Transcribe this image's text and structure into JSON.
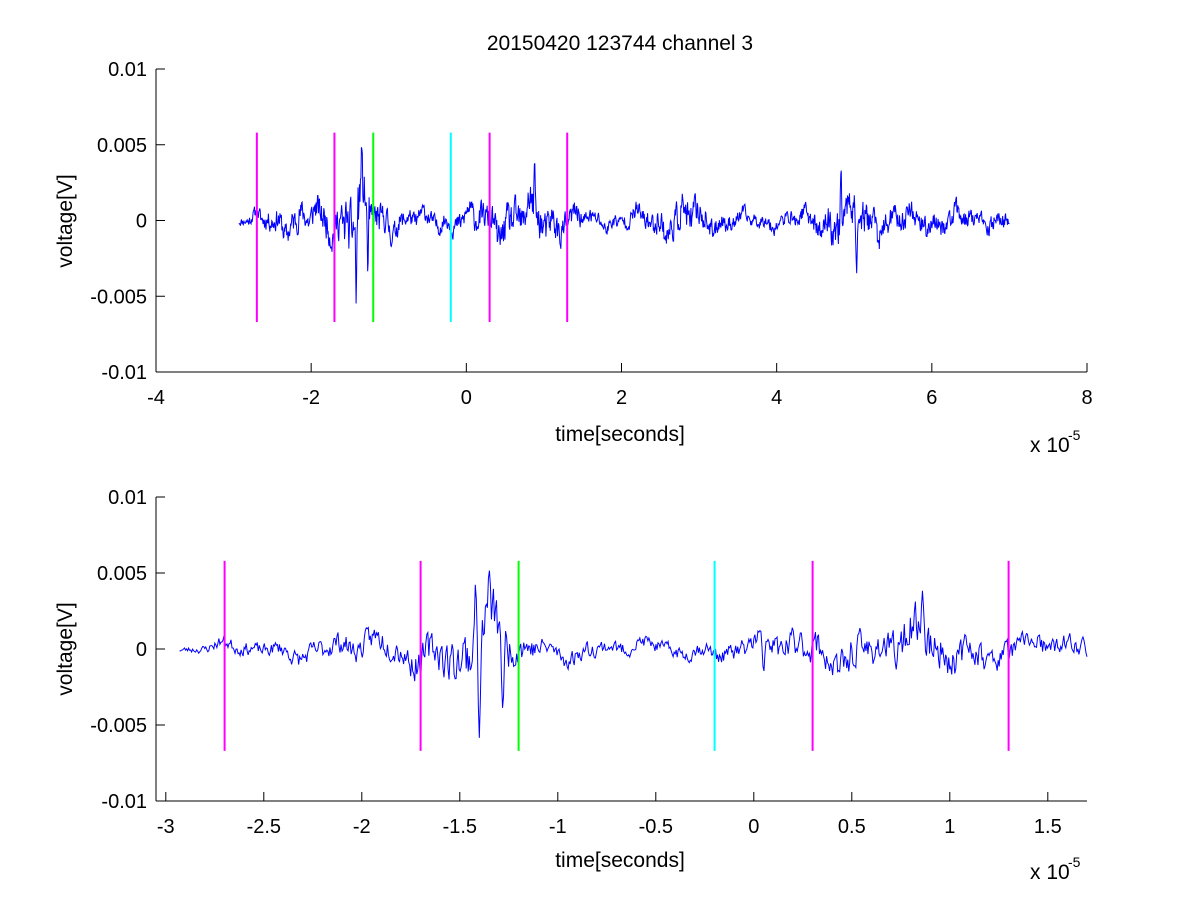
{
  "chart_data": [
    {
      "type": "line",
      "title": "20150420 123744 channel 3",
      "xlabel": "time[seconds]",
      "ylabel": "voltage[V]",
      "x_multiplier": "x 10",
      "x_exponent": "-5",
      "xlim": [
        -4,
        8
      ],
      "ylim": [
        -0.01,
        0.01
      ],
      "xticks": [
        -4,
        -2,
        0,
        2,
        4,
        6,
        8
      ],
      "xtick_labels": [
        "-4",
        "-2",
        "0",
        "2",
        "4",
        "6",
        "8"
      ],
      "yticks": [
        -0.01,
        -0.005,
        0,
        0.005,
        0.01
      ],
      "ytick_labels": [
        "-0.01",
        "-0.005",
        "0",
        "0.005",
        "0.01"
      ],
      "grid": false,
      "box": false,
      "series": [
        {
          "color": "#0000ff",
          "x_start": -2.93,
          "x_end": 7.0,
          "points": 1600,
          "amplitude_envelope": [
            [
              -2.93,
              0.0006
            ],
            [
              -2.75,
              0.0009
            ],
            [
              -2.6,
              0.0014
            ],
            [
              -2.3,
              0.0019
            ],
            [
              -1.9,
              0.0022
            ],
            [
              -1.6,
              0.0029
            ],
            [
              -1.4,
              0.0048
            ],
            [
              -1.2,
              0.0026
            ],
            [
              -0.8,
              0.0014
            ],
            [
              -0.4,
              0.0012
            ],
            [
              0.0,
              0.0016
            ],
            [
              0.4,
              0.0024
            ],
            [
              0.8,
              0.003
            ],
            [
              1.2,
              0.0022
            ],
            [
              1.6,
              0.0012
            ],
            [
              2.0,
              0.001
            ],
            [
              2.8,
              0.0026
            ],
            [
              3.2,
              0.0016
            ],
            [
              3.6,
              0.001
            ],
            [
              4.2,
              0.001
            ],
            [
              4.6,
              0.002
            ],
            [
              4.9,
              0.0032
            ],
            [
              5.2,
              0.0024
            ],
            [
              5.6,
              0.0018
            ],
            [
              6.0,
              0.0016
            ],
            [
              6.5,
              0.0014
            ],
            [
              7.0,
              0.0012
            ]
          ],
          "spikes": [
            [
              -1.55,
              0.0015
            ],
            [
              -1.42,
              -0.0058
            ],
            [
              -1.35,
              0.0052
            ],
            [
              -1.27,
              -0.0038
            ],
            [
              0.88,
              0.0044
            ],
            [
              4.83,
              0.0041
            ],
            [
              5.03,
              -0.0038
            ]
          ],
          "seed": 11
        }
      ],
      "markers": [
        {
          "x": -2.7,
          "y_min": -0.0067,
          "y_max": 0.0058,
          "color": "#ff00ff"
        },
        {
          "x": -1.7,
          "y_min": -0.0067,
          "y_max": 0.0058,
          "color": "#ff00ff"
        },
        {
          "x": -1.2,
          "y_min": -0.0067,
          "y_max": 0.0058,
          "color": "#00ff00"
        },
        {
          "x": -0.2,
          "y_min": -0.0067,
          "y_max": 0.0058,
          "color": "#00ffff"
        },
        {
          "x": 0.3,
          "y_min": -0.0067,
          "y_max": 0.0058,
          "color": "#ff00ff"
        },
        {
          "x": 1.3,
          "y_min": -0.0067,
          "y_max": 0.0058,
          "color": "#ff00ff"
        }
      ]
    },
    {
      "type": "line",
      "title": "",
      "xlabel": "time[seconds]",
      "ylabel": "voltage[V]",
      "x_multiplier": "x 10",
      "x_exponent": "-5",
      "xlim": [
        -3.05,
        1.7
      ],
      "ylim": [
        -0.01,
        0.01
      ],
      "xticks": [
        -3,
        -2.5,
        -2,
        -1.5,
        -1,
        -0.5,
        0,
        0.5,
        1,
        1.5
      ],
      "xtick_labels": [
        "-3",
        "-2.5",
        "-2",
        "-1.5",
        "-1",
        "-0.5",
        "0",
        "0.5",
        "1",
        "1.5"
      ],
      "yticks": [
        -0.01,
        -0.005,
        0,
        0.005,
        0.01
      ],
      "ytick_labels": [
        "-0.01",
        "-0.005",
        "0",
        "0.005",
        "0.01"
      ],
      "grid": false,
      "box": false,
      "series": [
        {
          "color": "#0000ff",
          "x_start": -2.93,
          "x_end": 1.7,
          "points": 900,
          "amplitude_envelope": [
            [
              -2.93,
              0.0004
            ],
            [
              -2.8,
              0.0006
            ],
            [
              -2.7,
              0.001
            ],
            [
              -2.5,
              0.001
            ],
            [
              -2.2,
              0.0016
            ],
            [
              -2.0,
              0.0018
            ],
            [
              -1.8,
              0.0022
            ],
            [
              -1.6,
              0.003
            ],
            [
              -1.45,
              0.0042
            ],
            [
              -1.35,
              0.0048
            ],
            [
              -1.25,
              0.003
            ],
            [
              -1.1,
              0.0016
            ],
            [
              -0.8,
              0.0012
            ],
            [
              -0.5,
              0.001
            ],
            [
              -0.2,
              0.0012
            ],
            [
              0.1,
              0.002
            ],
            [
              0.4,
              0.0026
            ],
            [
              0.7,
              0.0028
            ],
            [
              0.9,
              0.0034
            ],
            [
              1.1,
              0.0022
            ],
            [
              1.4,
              0.0016
            ],
            [
              1.7,
              0.0014
            ]
          ],
          "spikes": [
            [
              -1.42,
              0.0045
            ],
            [
              -1.4,
              -0.006
            ],
            [
              -1.35,
              0.0053
            ],
            [
              -1.28,
              -0.0045
            ],
            [
              0.86,
              0.004
            ],
            [
              0.05,
              -0.002
            ]
          ],
          "seed": 23
        }
      ],
      "markers": [
        {
          "x": -2.7,
          "y_min": -0.0067,
          "y_max": 0.0058,
          "color": "#ff00ff"
        },
        {
          "x": -1.7,
          "y_min": -0.0067,
          "y_max": 0.0058,
          "color": "#ff00ff"
        },
        {
          "x": -1.2,
          "y_min": -0.0067,
          "y_max": 0.0058,
          "color": "#00ff00"
        },
        {
          "x": -0.2,
          "y_min": -0.0067,
          "y_max": 0.0058,
          "color": "#00ffff"
        },
        {
          "x": 0.3,
          "y_min": -0.0067,
          "y_max": 0.0058,
          "color": "#ff00ff"
        },
        {
          "x": 1.3,
          "y_min": -0.0067,
          "y_max": 0.0058,
          "color": "#ff00ff"
        }
      ]
    }
  ]
}
